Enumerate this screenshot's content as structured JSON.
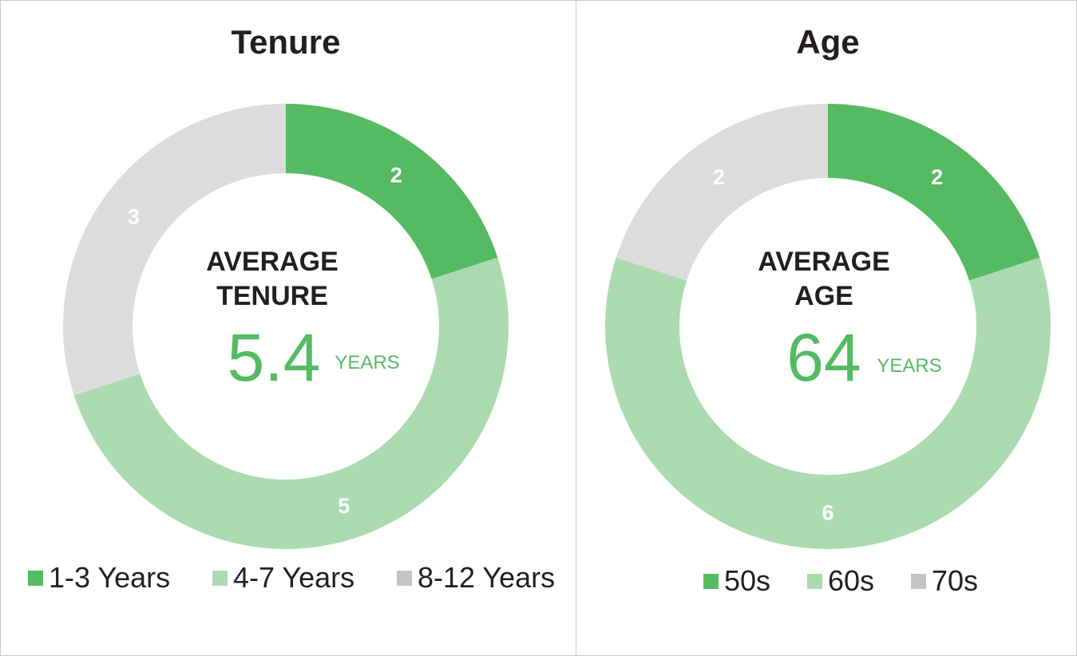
{
  "chart_data": [
    {
      "type": "pie",
      "title": "Tenure",
      "categories": [
        "1-3 Years",
        "4-7 Years",
        "8-12 Years"
      ],
      "values": [
        2,
        5,
        3
      ],
      "colors": [
        "#55bb63",
        "#acdab0",
        "#dcdcdd"
      ],
      "legend_colors": [
        "#55bb63",
        "#acdab0",
        "#c3c3c4"
      ],
      "center": {
        "line1": "AVERAGE",
        "line2": "TENURE",
        "value": "5.4",
        "unit": "YEARS"
      },
      "legend_position": "bottom"
    },
    {
      "type": "pie",
      "title": "Age",
      "categories": [
        "50s",
        "60s",
        "70s"
      ],
      "values": [
        2,
        6,
        2
      ],
      "colors": [
        "#55bb63",
        "#acdab0",
        "#dcdcdd"
      ],
      "legend_colors": [
        "#55bb63",
        "#acdab0",
        "#c3c3c4"
      ],
      "center": {
        "line1": "AVERAGE",
        "line2": "AGE",
        "value": "64",
        "unit": "YEARS"
      },
      "legend_position": "bottom"
    }
  ],
  "accent_color": "#55bb63"
}
